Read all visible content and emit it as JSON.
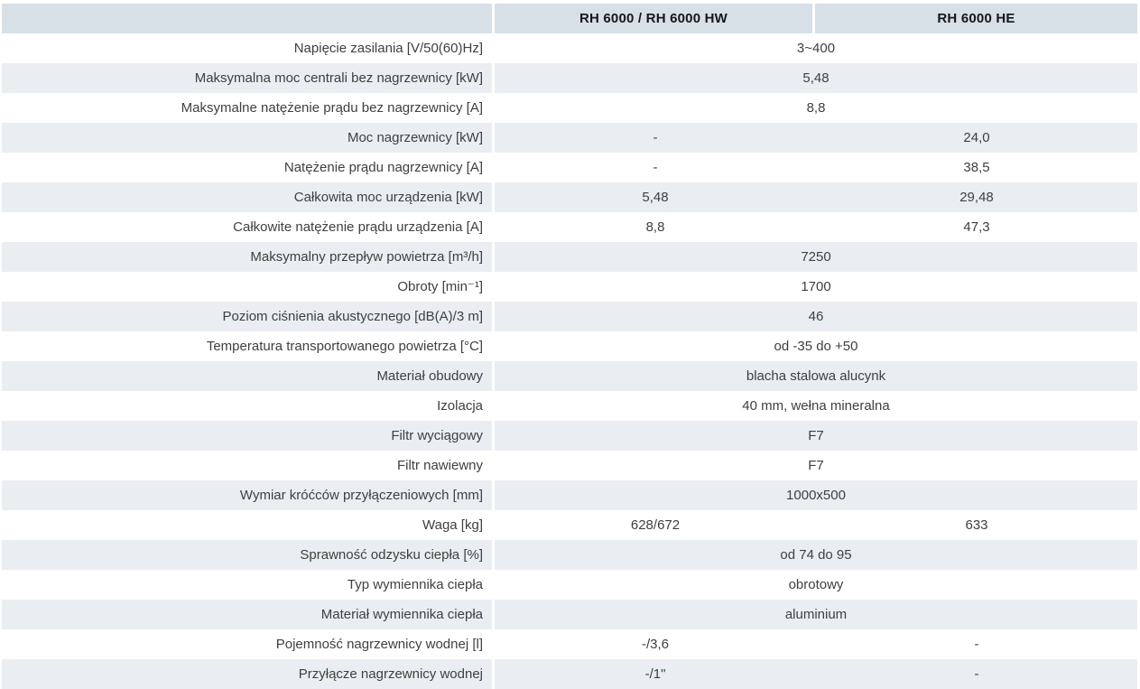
{
  "table": {
    "columns": [
      "",
      "RH 6000 / RH 6000 HW",
      "RH 6000 HE"
    ],
    "rows": [
      {
        "label": "Napięcie zasilania [V/50(60)Hz]",
        "span": "3~400"
      },
      {
        "label": "Maksymalna moc centrali bez nagrzewnicy [kW]",
        "span": "5,48"
      },
      {
        "label": "Maksymalne natężenie prądu bez nagrzewnicy [A]",
        "span": "8,8"
      },
      {
        "label": "Moc nagrzewnicy [kW]",
        "col1": "-",
        "col2": "24,0"
      },
      {
        "label": "Natężenie prądu nagrzewnicy [A]",
        "col1": "-",
        "col2": "38,5"
      },
      {
        "label": "Całkowita moc urządzenia [kW]",
        "col1": "5,48",
        "col2": "29,48"
      },
      {
        "label": "Całkowite natężenie prądu urządzenia [A]",
        "col1": "8,8",
        "col2": "47,3"
      },
      {
        "label": "Maksymalny przepływ powietrza [m³/h]",
        "span": "7250"
      },
      {
        "label": "Obroty [min⁻¹]",
        "span": "1700"
      },
      {
        "label": "Poziom ciśnienia akustycznego [dB(A)/3 m]",
        "span": "46"
      },
      {
        "label": "Temperatura transportowanego powietrza [°C]",
        "span": "od -35 do +50"
      },
      {
        "label": "Materiał obudowy",
        "span": "blacha stalowa alucynk"
      },
      {
        "label": "Izolacja",
        "span": "40 mm, wełna mineralna"
      },
      {
        "label": "Filtr wyciągowy",
        "span": "F7"
      },
      {
        "label": "Filtr nawiewny",
        "span": "F7"
      },
      {
        "label": "Wymiar króćców przyłączeniowych [mm]",
        "span": "1000x500"
      },
      {
        "label": "Waga [kg]",
        "col1": "628/672",
        "col2": "633"
      },
      {
        "label": "Sprawność odzysku ciepła [%]",
        "span": "od 74 do 95"
      },
      {
        "label": "Typ wymiennika ciepła",
        "span": "obrotowy"
      },
      {
        "label": "Materiał wymiennika ciepła",
        "span": "aluminium"
      },
      {
        "label": "Pojemność nagrzewnicy wodnej [l]",
        "col1": "-/3,6",
        "col2": "-"
      },
      {
        "label": "Przyłącze nagrzewnicy wodnej",
        "col1": "-/1\"",
        "col2": "-"
      }
    ]
  },
  "colors": {
    "header_bg": "#d7e0e7",
    "stripe_bg": "#eaeef2",
    "text": "#3f3f3f",
    "header_text": "#15171a"
  }
}
